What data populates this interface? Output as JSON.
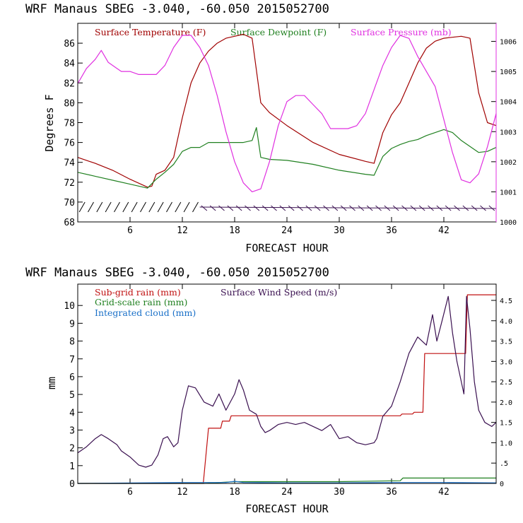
{
  "chart_data": [
    {
      "type": "line",
      "title": "WRF   Manaus SBEG   -3.040, -60.050  2015052700",
      "xlabel": "FORECAST HOUR",
      "ylabel": "Degrees F",
      "xlim": [
        0,
        48
      ],
      "ylim": [
        68,
        88
      ],
      "y2lim": [
        1000,
        1006.6
      ],
      "x_ticks": [
        6,
        12,
        18,
        24,
        30,
        36,
        42
      ],
      "y_ticks": [
        68,
        70,
        72,
        74,
        76,
        78,
        80,
        82,
        84,
        86
      ],
      "y2_ticks": [
        1000,
        1001,
        1002,
        1003,
        1004,
        1005,
        1006
      ],
      "series": [
        {
          "name": "Surface Temperature (F)",
          "color": "#a00000",
          "axis": "left",
          "x": [
            0,
            2,
            4,
            6,
            8,
            8.5,
            9,
            10,
            11,
            12,
            13,
            14,
            15,
            16,
            17,
            18,
            19,
            20,
            21,
            22,
            24,
            27,
            30,
            33,
            34,
            35,
            36,
            37,
            38,
            39,
            40,
            41,
            42,
            43,
            44,
            45,
            46,
            47,
            48
          ],
          "y": [
            74.5,
            73.9,
            73.2,
            72.3,
            71.5,
            71.6,
            72.8,
            73.2,
            74.5,
            78.5,
            82.0,
            84.0,
            85.2,
            86.0,
            86.5,
            86.7,
            86.9,
            86.5,
            80.0,
            79.0,
            77.7,
            76.0,
            74.8,
            74.1,
            73.9,
            77.0,
            78.8,
            80.0,
            82.0,
            84.0,
            85.5,
            86.2,
            86.5,
            86.6,
            86.7,
            86.5,
            81.0,
            78.0,
            77.7
          ]
        },
        {
          "name": "Surface Dewpoint (F)",
          "color": "#208020",
          "axis": "left",
          "x": [
            0,
            2,
            4,
            6,
            8,
            9,
            10,
            11,
            12,
            13,
            14,
            15,
            16,
            17,
            18,
            19,
            20,
            20.5,
            21,
            22,
            24,
            27,
            30,
            33,
            34,
            35,
            36,
            37,
            38,
            39,
            40,
            41,
            42,
            43,
            44,
            45,
            46,
            47,
            48
          ],
          "y": [
            73.0,
            72.6,
            72.2,
            71.8,
            71.4,
            72.3,
            73.0,
            73.8,
            75.1,
            75.5,
            75.5,
            76.0,
            76.0,
            76.0,
            76.0,
            76.0,
            76.2,
            77.5,
            74.5,
            74.3,
            74.2,
            73.8,
            73.2,
            72.8,
            72.7,
            74.6,
            75.4,
            75.8,
            76.1,
            76.3,
            76.7,
            77.0,
            77.3,
            77.0,
            76.2,
            75.6,
            75.0,
            75.1,
            75.5
          ]
        },
        {
          "name": "Surface Pressure (mb)",
          "color": "#e030e0",
          "axis": "right",
          "x": [
            0,
            1,
            2,
            2.7,
            3.5,
            4.5,
            5,
            6,
            7,
            8,
            9,
            10,
            11,
            12,
            13,
            14,
            15,
            16,
            17,
            18,
            19,
            20,
            21,
            22,
            23,
            24,
            25,
            26,
            27,
            28,
            29,
            30,
            31,
            32,
            33,
            34,
            35,
            36,
            37,
            38,
            39,
            40,
            41,
            42,
            43,
            44,
            45,
            46,
            47,
            48
          ],
          "y": [
            1004.6,
            1005.1,
            1005.4,
            1005.7,
            1005.3,
            1005.1,
            1005.0,
            1005.0,
            1004.9,
            1004.9,
            1004.9,
            1005.2,
            1005.8,
            1006.2,
            1006.2,
            1005.8,
            1005.2,
            1004.2,
            1003.0,
            1002.0,
            1001.3,
            1001.0,
            1001.1,
            1002.0,
            1003.2,
            1004.0,
            1004.2,
            1004.2,
            1003.9,
            1003.6,
            1003.1,
            1003.1,
            1003.1,
            1003.2,
            1003.6,
            1004.4,
            1005.2,
            1005.8,
            1006.2,
            1006.1,
            1005.5,
            1005.0,
            1004.5,
            1003.4,
            1002.3,
            1001.4,
            1001.3,
            1001.6,
            1002.5,
            1003.6
          ]
        }
      ],
      "annotations": "wind barbs along bottom edge (about 70-71 F level)"
    },
    {
      "type": "line",
      "title": "WRF   Manaus SBEG   -3.040, -60.050  2015052700",
      "xlabel": "FORECAST HOUR",
      "ylabel": "mm",
      "xlim": [
        0,
        48
      ],
      "ylim": [
        0,
        11.2
      ],
      "y2lim": [
        0,
        4.9
      ],
      "x_ticks": [
        6,
        12,
        18,
        24,
        30,
        36,
        42
      ],
      "y_ticks": [
        0,
        1,
        2,
        3,
        4,
        5,
        6,
        7,
        8,
        9,
        10
      ],
      "y2_ticks": [
        0,
        0.5,
        1.0,
        1.5,
        2.0,
        2.5,
        3.0,
        3.5,
        4.0,
        4.5
      ],
      "y2_tick_labels": [
        "0",
        ".5",
        "1.0",
        "1.5",
        "2.0",
        "2.5",
        "3.0",
        "3.5",
        "4.0",
        "4.5"
      ],
      "series": [
        {
          "name": "Sub-grid rain (mm)",
          "color": "#c01010",
          "axis": "left",
          "x": [
            0,
            14.4,
            15.0,
            16.4,
            16.6,
            17.4,
            17.6,
            34.5,
            37.0,
            37.2,
            38.4,
            38.6,
            39.6,
            39.8,
            44.5,
            44.7,
            48
          ],
          "y": [
            0,
            0,
            3.1,
            3.1,
            3.5,
            3.5,
            3.8,
            3.8,
            3.8,
            3.9,
            3.9,
            4.0,
            4.0,
            7.3,
            7.3,
            10.6,
            10.6
          ]
        },
        {
          "name": "Grid-scale rain (mm)",
          "color": "#208020",
          "axis": "left",
          "x": [
            0,
            14.5,
            18.0,
            22.0,
            30.0,
            37.0,
            37.3,
            48
          ],
          "y": [
            0,
            0,
            0.1,
            0.1,
            0.1,
            0.15,
            0.3,
            0.3
          ]
        },
        {
          "name": "Integrated cloud (mm)",
          "color": "#1a70c8",
          "axis": "left",
          "x": [
            0,
            12,
            17,
            18,
            19,
            24,
            30,
            36,
            42,
            48
          ],
          "y": [
            0,
            0.05,
            0.05,
            0.12,
            0.05,
            0.03,
            0.03,
            0.05,
            0.05,
            0.03
          ]
        },
        {
          "name": "Surface Wind Speed (m/s)",
          "color": "#3a1050",
          "axis": "right",
          "x": [
            0,
            1,
            2,
            2.7,
            3.5,
            4.5,
            5,
            6,
            7,
            7.8,
            8.5,
            9.2,
            9.8,
            10.3,
            11.0,
            11.5,
            12,
            12.7,
            13.5,
            14.5,
            15.5,
            16.2,
            17,
            18,
            18.5,
            19,
            19.7,
            20.5,
            21,
            21.5,
            22,
            23,
            24,
            25,
            26,
            27,
            28,
            29,
            30,
            31,
            32,
            33,
            34,
            34.3,
            35,
            36,
            37,
            38,
            39,
            40,
            40.7,
            41.2,
            41.8,
            42.5,
            43,
            43.5,
            44,
            44.3,
            44.6,
            45,
            45.5,
            46,
            46.7,
            47.5,
            48
          ],
          "y": [
            0.75,
            0.9,
            1.1,
            1.2,
            1.1,
            0.95,
            0.8,
            0.65,
            0.45,
            0.4,
            0.45,
            0.7,
            1.1,
            1.15,
            0.9,
            1.0,
            1.8,
            2.4,
            2.35,
            2.0,
            1.9,
            2.2,
            1.8,
            2.2,
            2.55,
            2.3,
            1.8,
            1.7,
            1.4,
            1.25,
            1.3,
            1.45,
            1.5,
            1.45,
            1.5,
            1.4,
            1.3,
            1.45,
            1.1,
            1.15,
            1.0,
            0.95,
            1.0,
            1.1,
            1.65,
            1.9,
            2.5,
            3.2,
            3.6,
            3.4,
            4.15,
            3.5,
            4.0,
            4.6,
            3.7,
            3.0,
            2.5,
            2.2,
            4.6,
            3.8,
            2.5,
            1.8,
            1.5,
            1.4,
            1.5
          ]
        }
      ]
    }
  ]
}
